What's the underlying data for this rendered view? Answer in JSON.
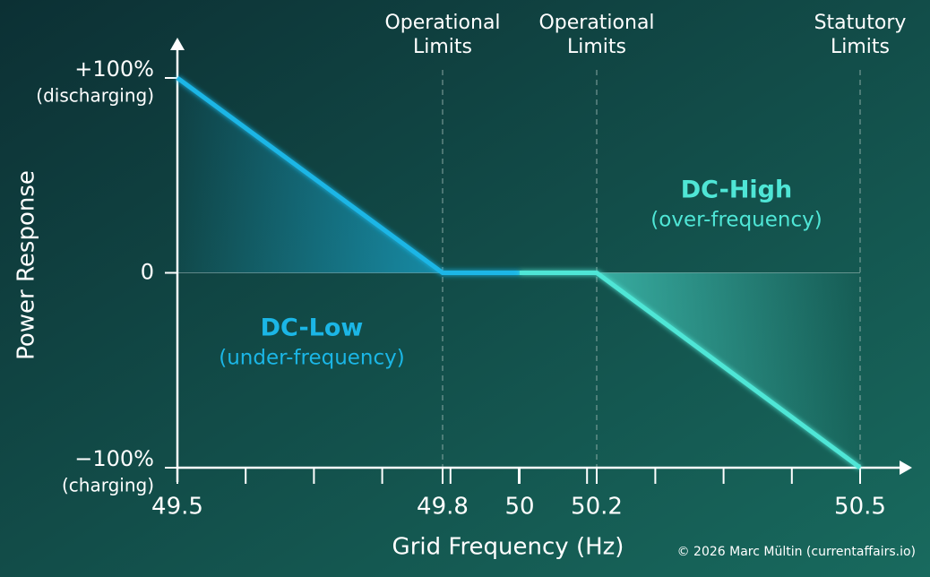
{
  "chart_data": {
    "type": "line",
    "x_label": "Grid Frequency (Hz)",
    "y_label": "Power Response",
    "xlim": [
      49.5,
      50.5
    ],
    "xticks": [
      49.5,
      49.8,
      50.0,
      50.2,
      50.5
    ],
    "ylim": [
      -100,
      100
    ],
    "yticks": [
      {
        "value": 100,
        "label": "+100%",
        "note": "(discharging)"
      },
      {
        "value": 0,
        "label": "0"
      },
      {
        "value": -100,
        "label": "−100%",
        "note": "(charging)"
      }
    ],
    "series": [
      {
        "name": "DC-Low",
        "subtitle": "(under-frequency)",
        "color": "#1bb6e6",
        "x": [
          49.5,
          49.8,
          50.0
        ],
        "values": [
          100,
          0,
          0
        ]
      },
      {
        "name": "DC-High",
        "subtitle": "(over-frequency)",
        "color": "#4fe6d6",
        "x": [
          50.0,
          50.2,
          50.5
        ],
        "values": [
          0,
          0,
          -100
        ]
      }
    ],
    "limits": [
      {
        "x": 49.8,
        "lines": [
          "Operational",
          "Limits"
        ]
      },
      {
        "x": 50.2,
        "lines": [
          "Operational",
          "Limits"
        ]
      },
      {
        "x": 50.5,
        "lines": [
          "Statutory",
          "Limits"
        ]
      }
    ],
    "credit": "© 2026 Marc Mültin (currentaffairs.io)"
  }
}
